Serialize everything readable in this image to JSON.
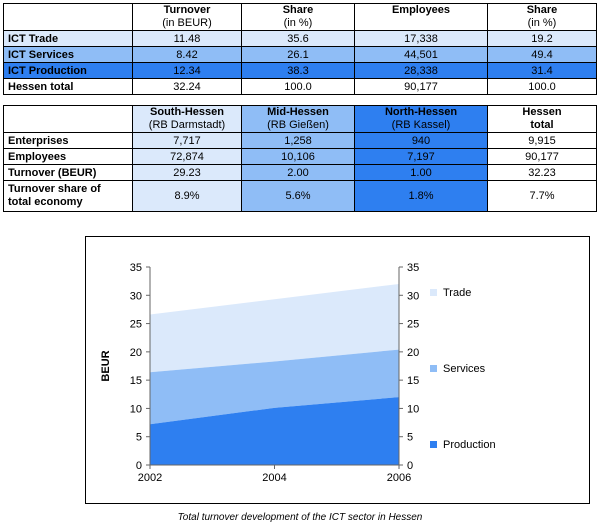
{
  "table1": {
    "headers": [
      {
        "title": "",
        "sub": ""
      },
      {
        "title": "Turnover",
        "sub": "(in BEUR)"
      },
      {
        "title": "Share",
        "sub": "(in %)"
      },
      {
        "title": "Employees",
        "sub": ""
      },
      {
        "title": "Share",
        "sub": "(in %)"
      }
    ],
    "rows": [
      {
        "label": "ICT Trade",
        "cells": [
          "11.48",
          "35.6",
          "17,338",
          "19.2"
        ]
      },
      {
        "label": "ICT Services",
        "cells": [
          "8.42",
          "26.1",
          "44,501",
          "49.4"
        ]
      },
      {
        "label": "ICT Production",
        "cells": [
          "12.34",
          "38.3",
          "28,338",
          "31.4"
        ]
      },
      {
        "label": "Hessen total",
        "cells": [
          "32.24",
          "100.0",
          "90,177",
          "100.0"
        ]
      }
    ]
  },
  "table2": {
    "headers": [
      {
        "title": "",
        "sub": ""
      },
      {
        "title": "South-Hessen",
        "sub": "(RB Darmstadt)"
      },
      {
        "title": "Mid-Hessen",
        "sub": "(RB Gießen)"
      },
      {
        "title": "North-Hessen",
        "sub": "(RB Kassel)"
      },
      {
        "title": "Hessen",
        "sub": "total"
      }
    ],
    "rows": [
      {
        "label": "Enterprises",
        "cells": [
          "7,717",
          "1,258",
          "940",
          "9,915"
        ]
      },
      {
        "label": "Employees",
        "cells": [
          "72,874",
          "10,106",
          "7,197",
          "90,177"
        ]
      },
      {
        "label": "Turnover (BEUR)",
        "cells": [
          "29.23",
          "2.00",
          "1.00",
          "32.23"
        ]
      }
    ],
    "last_row": {
      "label_line1": "Turnover share of",
      "label_line2": "total economy",
      "cells": [
        "8.9%",
        "5.6%",
        "1.8%",
        "7.7%"
      ]
    }
  },
  "chart_data": {
    "type": "area",
    "stacked": true,
    "x": [
      2002,
      2004,
      2006
    ],
    "xlabel": "",
    "ylabel": "BEUR",
    "ylim": [
      0,
      35
    ],
    "yticks": [
      0,
      5,
      10,
      15,
      20,
      25,
      30,
      35
    ],
    "secondary_yaxis": true,
    "series": [
      {
        "name": "Production",
        "values": [
          7.2,
          10.1,
          12.0
        ],
        "color": "#2e7ff0"
      },
      {
        "name": "Services",
        "values": [
          9.2,
          8.2,
          8.4
        ],
        "color": "#8fbdf6"
      },
      {
        "name": "Trade",
        "values": [
          10.2,
          11.0,
          11.6
        ],
        "color": "#dbe9fb"
      }
    ],
    "legend_position": "right"
  },
  "caption": "Total turnover development of the ICT sector in Hessen"
}
